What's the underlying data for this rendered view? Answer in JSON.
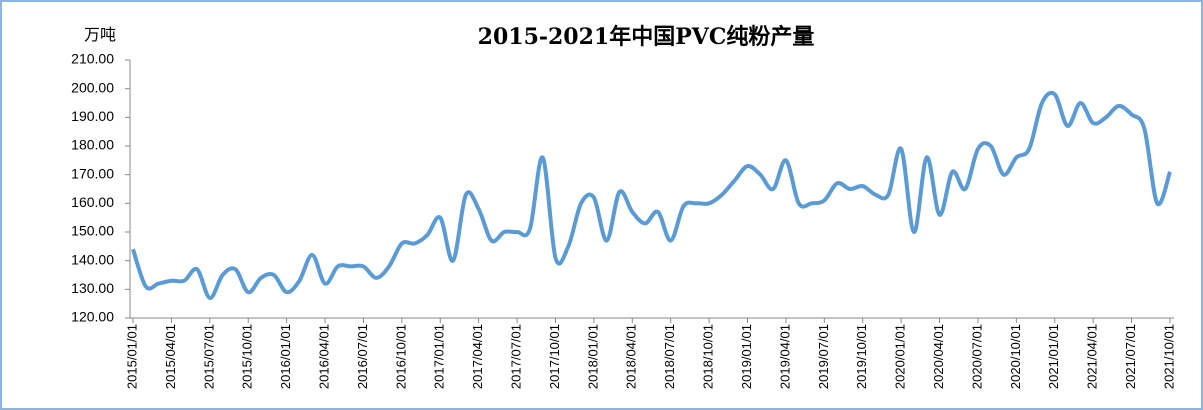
{
  "chart_data": {
    "type": "line",
    "title": "2015-2021年中国PVC纯粉产量",
    "y_label": "万吨",
    "categories": [
      "2015/01/01",
      null,
      null,
      "2015/04/01",
      null,
      null,
      "2015/07/01",
      null,
      null,
      "2015/10/01",
      null,
      null,
      "2016/01/01",
      null,
      null,
      "2016/04/01",
      null,
      null,
      "2016/07/01",
      null,
      null,
      "2016/10/01",
      null,
      null,
      "2017/01/01",
      null,
      null,
      "2017/04/01",
      null,
      null,
      "2017/07/01",
      null,
      null,
      "2017/10/01",
      null,
      null,
      "2018/01/01",
      null,
      null,
      "2018/04/01",
      null,
      null,
      "2018/07/01",
      null,
      null,
      "2018/10/01",
      null,
      null,
      "2019/01/01",
      null,
      null,
      "2019/04/01",
      null,
      null,
      "2019/07/01",
      null,
      null,
      "2019/10/01",
      null,
      null,
      "2020/01/01",
      null,
      null,
      "2020/04/01",
      null,
      null,
      "2020/07/01",
      null,
      null,
      "2020/10/01",
      null,
      null,
      "2021/01/01",
      null,
      null,
      "2021/04/01",
      null,
      null,
      "2021/07/01",
      null,
      null,
      "2021/10/01"
    ],
    "series": [
      {
        "color": "#5b9bd5",
        "values": [
          144,
          131,
          132,
          133,
          133,
          137,
          127,
          135,
          137,
          129,
          134,
          135,
          129,
          133,
          142,
          132,
          138,
          138,
          138,
          134,
          138,
          146,
          146,
          149,
          155,
          140,
          163,
          158,
          147,
          150,
          150,
          151,
          176,
          141,
          145,
          160,
          162,
          147,
          164,
          157,
          153,
          157,
          147,
          159,
          160,
          160,
          163,
          168,
          173,
          170,
          165,
          175,
          160,
          160,
          161,
          167,
          165,
          166,
          163,
          163,
          179,
          150,
          176,
          156,
          171,
          165,
          179,
          180,
          170,
          176,
          179,
          195,
          198,
          187,
          195,
          188,
          190,
          194,
          191,
          186,
          160,
          171
        ]
      }
    ],
    "ylim": [
      120,
      210
    ],
    "yticks": [
      {
        "value": 120,
        "label": "120.00"
      },
      {
        "value": 130,
        "label": "130.00"
      },
      {
        "value": 140,
        "label": "140.00"
      },
      {
        "value": 150,
        "label": "150.00"
      },
      {
        "value": 160,
        "label": "160.00"
      },
      {
        "value": 170,
        "label": "170.00"
      },
      {
        "value": 180,
        "label": "180.00"
      },
      {
        "value": 190,
        "label": "190.00"
      },
      {
        "value": 200,
        "label": "200.00"
      },
      {
        "value": 210,
        "label": "210.00"
      }
    ]
  }
}
